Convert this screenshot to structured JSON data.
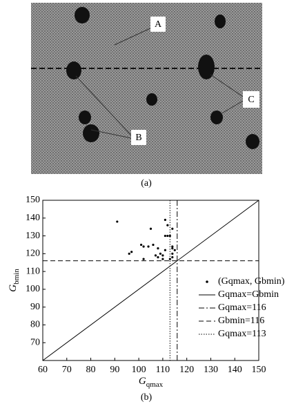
{
  "image_a": {
    "caption": "(a)",
    "labels": [
      "A",
      "B",
      "C"
    ]
  },
  "chart_data": {
    "type": "scatter",
    "caption": "(b)",
    "x_label": {
      "symbol": "G",
      "subscript": "qmax"
    },
    "y_label": {
      "symbol": "G",
      "subscript": "bmin"
    },
    "xlim": [
      60,
      150
    ],
    "ylim": [
      60,
      150
    ],
    "xticks": [
      60,
      70,
      80,
      90,
      100,
      110,
      120,
      130,
      140,
      150
    ],
    "yticks": [
      70,
      80,
      90,
      100,
      110,
      120,
      130,
      140,
      150
    ],
    "series": [
      {
        "name": "(Gqmax, Gbmin)",
        "color": "#000000",
        "x": [
          91,
          96,
          97,
          101,
          102,
          102,
          104,
          105,
          106,
          107,
          108,
          108,
          109,
          110,
          110,
          111,
          111,
          111,
          112,
          112,
          113,
          113,
          114,
          114,
          114,
          114,
          114,
          115
        ],
        "y": [
          138,
          120,
          121,
          125,
          124,
          117,
          124,
          134,
          125,
          119,
          118,
          123,
          120,
          119,
          117,
          139,
          130,
          122,
          136,
          130,
          130,
          117,
          134,
          124,
          123,
          120,
          118,
          122
        ]
      }
    ],
    "reference_lines": [
      {
        "name": "Gqmax=Gbmin",
        "style": "solid"
      },
      {
        "name": "Gqmax=116",
        "style": "dashdot",
        "x": 116
      },
      {
        "name": "Gbmin=116",
        "style": "dashed",
        "y": 116
      },
      {
        "name": "Gqmax=113",
        "style": "dotted",
        "x": 113
      }
    ],
    "legend": "right"
  }
}
